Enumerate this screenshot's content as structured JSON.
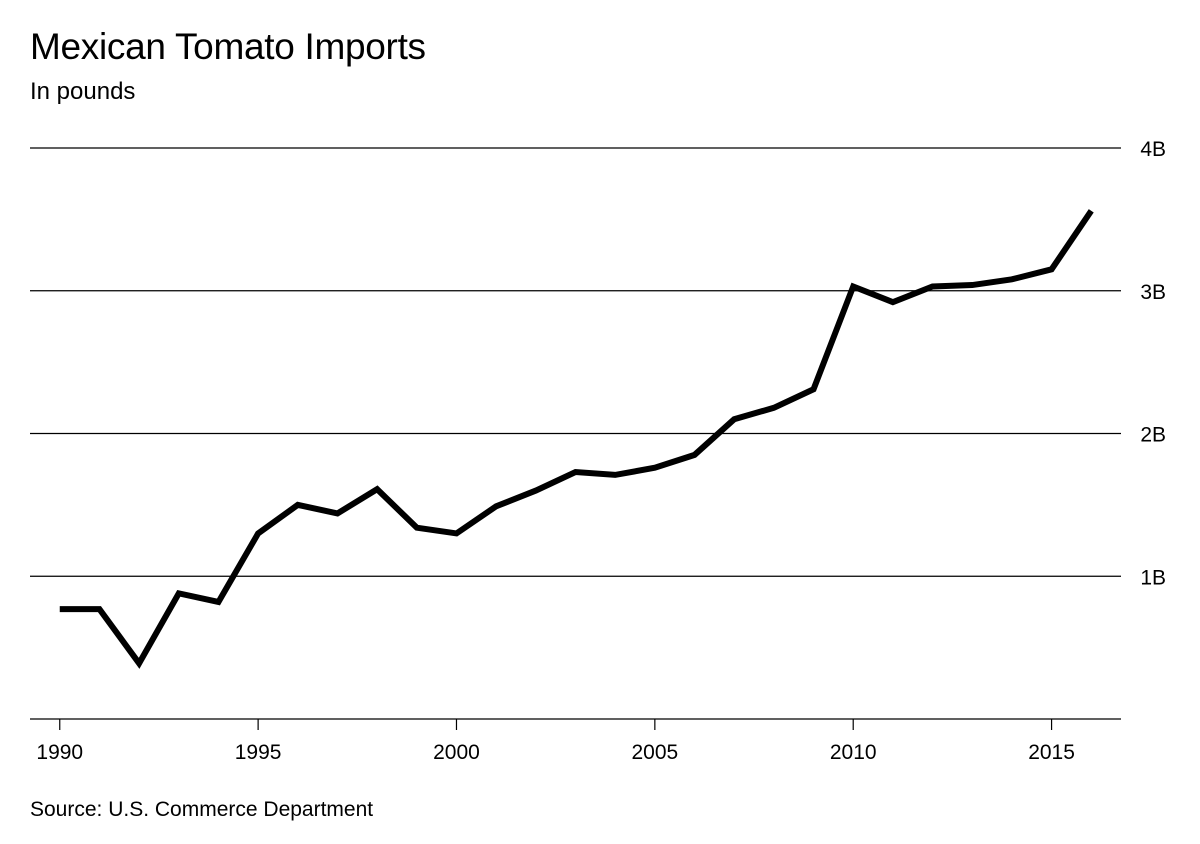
{
  "chart_data": {
    "type": "line",
    "title": "Mexican Tomato Imports",
    "subtitle": "In pounds",
    "source": "Source: U.S. Commerce Department",
    "xlabel": "",
    "ylabel": "",
    "xlim": [
      1989.25,
      2016.75
    ],
    "ylim": [
      0,
      4
    ],
    "y_ticks": [
      {
        "value": 1,
        "label": "1B"
      },
      {
        "value": 2,
        "label": "2B"
      },
      {
        "value": 3,
        "label": "3B"
      },
      {
        "value": 4,
        "label": "4B"
      }
    ],
    "x_ticks": [
      {
        "value": 1990,
        "label": "1990"
      },
      {
        "value": 1995,
        "label": "1995"
      },
      {
        "value": 2000,
        "label": "2000"
      },
      {
        "value": 2005,
        "label": "2005"
      },
      {
        "value": 2010,
        "label": "2010"
      },
      {
        "value": 2015,
        "label": "2015"
      }
    ],
    "grid": true,
    "y_axis_position": "right",
    "line_color": "#000000",
    "series": [
      {
        "x": [
          1990,
          1991,
          1992,
          1993,
          1994,
          1995,
          1996,
          1997,
          1998,
          1999,
          2000,
          2001,
          2002,
          2003,
          2004,
          2005,
          2006,
          2007,
          2008,
          2009,
          2010,
          2011,
          2012,
          2013,
          2014,
          2015,
          2016
        ],
        "values": [
          0.77,
          0.77,
          0.39,
          0.88,
          0.82,
          1.3,
          1.5,
          1.44,
          1.61,
          1.34,
          1.3,
          1.49,
          1.6,
          1.73,
          1.71,
          1.76,
          1.85,
          2.1,
          2.18,
          2.31,
          3.03,
          2.92,
          3.03,
          3.04,
          3.08,
          3.15,
          3.56
        ]
      }
    ]
  }
}
